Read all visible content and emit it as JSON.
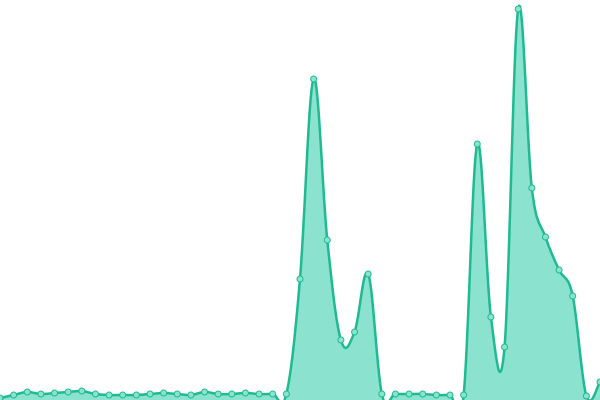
{
  "chart_data": {
    "type": "area",
    "values": [
      2,
      5,
      8,
      6,
      7,
      8,
      9,
      6,
      5,
      5,
      5,
      6,
      7,
      6,
      5,
      8,
      6,
      6,
      7,
      6,
      6,
      6,
      121,
      321,
      160,
      60,
      68,
      126,
      6,
      6,
      6,
      6,
      5,
      5,
      5,
      256,
      83,
      53,
      391,
      212,
      163,
      130,
      104,
      4,
      18
    ],
    "ylim": [
      0,
      400
    ],
    "color": "#1fba92",
    "fill_color": "#8ae2cf"
  }
}
